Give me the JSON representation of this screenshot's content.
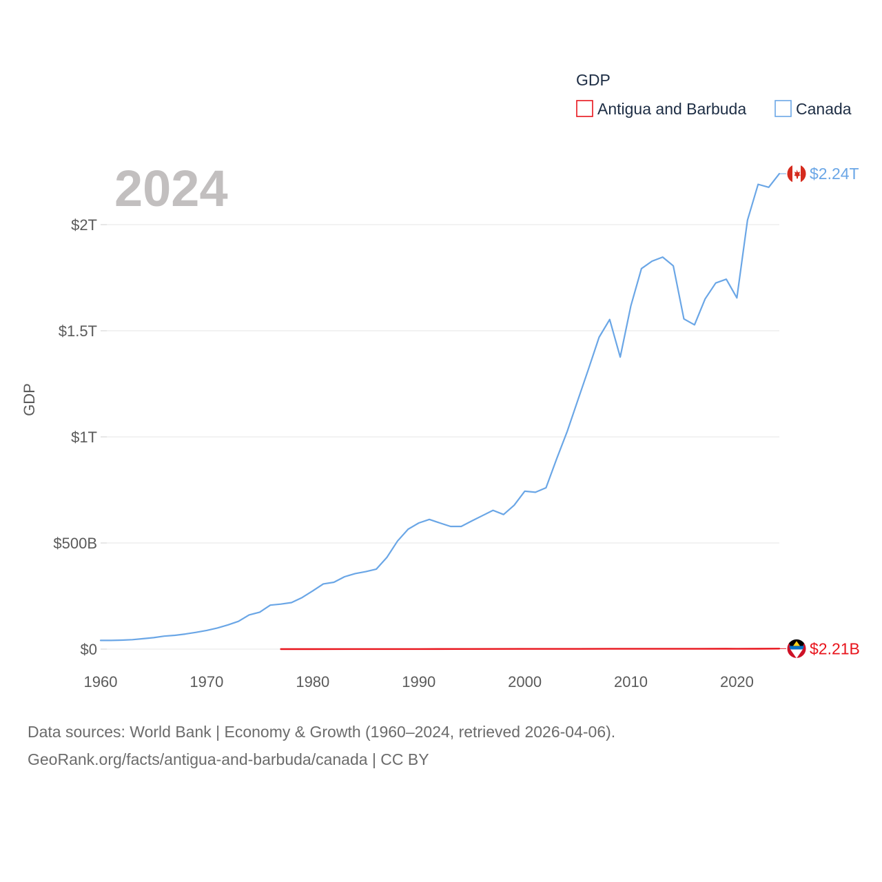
{
  "chart_data": {
    "type": "line",
    "title": "",
    "year_overlay": "2024",
    "xlabel": "",
    "ylabel": "GDP",
    "xlim": [
      1960,
      2024
    ],
    "ylim": [
      0,
      2300000000000
    ],
    "x_ticks": [
      {
        "value": 1960,
        "label": "1960"
      },
      {
        "value": 1970,
        "label": "1970"
      },
      {
        "value": 1980,
        "label": "1980"
      },
      {
        "value": 1990,
        "label": "1990"
      },
      {
        "value": 2000,
        "label": "2000"
      },
      {
        "value": 2010,
        "label": "2010"
      },
      {
        "value": 2020,
        "label": "2020"
      }
    ],
    "y_ticks": [
      {
        "value": 0,
        "label": "$0"
      },
      {
        "value": 500000000000,
        "label": "$500B"
      },
      {
        "value": 1000000000000,
        "label": "$1T"
      },
      {
        "value": 1500000000000,
        "label": "$1.5T"
      },
      {
        "value": 2000000000000,
        "label": "$2T"
      }
    ],
    "legend": {
      "title": "GDP",
      "position": "top-right"
    },
    "series": [
      {
        "name": "Antigua and Barbuda",
        "color": "#e8131b",
        "end_label": "$2.21B",
        "flag_icon": "antigua-and-barbuda-flag-icon",
        "x": [
          1977,
          1980,
          1985,
          1990,
          1995,
          2000,
          2005,
          2008,
          2010,
          2015,
          2019,
          2020,
          2022,
          2024
        ],
        "values": [
          77000000,
          132000000,
          261000000,
          459000000,
          587000000,
          830000000,
          1000000000,
          1350000000,
          1150000000,
          1400000000,
          1700000000,
          1400000000,
          1750000000,
          2210000000
        ]
      },
      {
        "name": "Canada",
        "color": "#6aa6e6",
        "end_label": "$2.24T",
        "flag_icon": "canada-flag-icon",
        "x": [
          1960,
          1961,
          1962,
          1963,
          1964,
          1965,
          1966,
          1967,
          1968,
          1969,
          1970,
          1971,
          1972,
          1973,
          1974,
          1975,
          1976,
          1977,
          1978,
          1979,
          1980,
          1981,
          1982,
          1983,
          1984,
          1985,
          1986,
          1987,
          1988,
          1989,
          1990,
          1991,
          1992,
          1993,
          1994,
          1995,
          1996,
          1997,
          1998,
          1999,
          2000,
          2001,
          2002,
          2003,
          2004,
          2005,
          2006,
          2007,
          2008,
          2009,
          2010,
          2011,
          2012,
          2013,
          2014,
          2015,
          2016,
          2017,
          2018,
          2019,
          2020,
          2021,
          2022,
          2023,
          2024
        ],
        "values": [
          41000000000,
          40800000000,
          42200000000,
          44600000000,
          48900000000,
          54000000000,
          61100000000,
          65000000000,
          71000000000,
          79000000000,
          87900000000,
          99300000000,
          114000000000,
          131000000000,
          161000000000,
          174000000000,
          207000000000,
          212000000000,
          219000000000,
          243000000000,
          274000000000,
          307000000000,
          315000000000,
          341000000000,
          356000000000,
          365000000000,
          377000000000,
          432000000000,
          509000000000,
          565000000000,
          594000000000,
          611000000000,
          594000000000,
          578000000000,
          578000000000,
          604000000000,
          629000000000,
          654000000000,
          634000000000,
          678000000000,
          744000000000,
          739000000000,
          760000000000,
          896000000000,
          1026000000000,
          1173000000000,
          1319000000000,
          1469000000000,
          1553000000000,
          1376000000000,
          1617000000000,
          1793000000000,
          1828000000000,
          1847000000000,
          1806000000000,
          1556000000000,
          1528000000000,
          1650000000000,
          1725000000000,
          1743000000000,
          1655000000000,
          2021000000000,
          2190000000000,
          2176000000000,
          2240000000000
        ]
      }
    ]
  },
  "footer": {
    "line1": "Data sources: World Bank | Economy & Growth (1960–2024, retrieved 2026-04-06).",
    "line2": "GeoRank.org/facts/antigua-and-barbuda/canada | CC BY"
  }
}
